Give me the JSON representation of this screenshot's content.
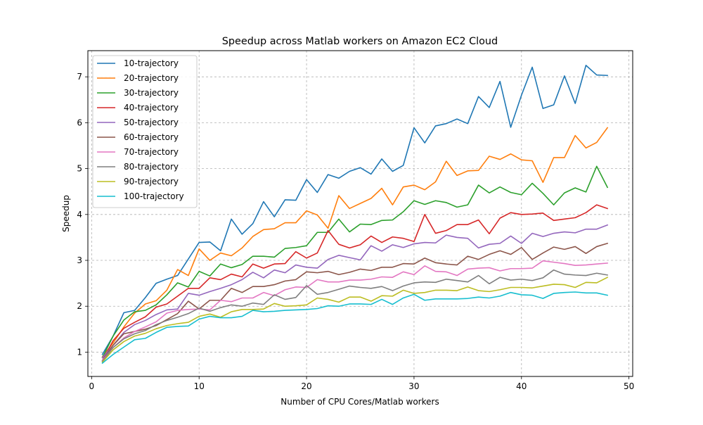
{
  "chart_data": {
    "type": "line",
    "title": "Speedup across Matlab workers on Amazon EC2 Cloud",
    "xlabel": "Number of CPU Cores/Matlab workers",
    "ylabel": "Speedup",
    "xlim": [
      -0.35,
      50.35
    ],
    "ylim": [
      0.47,
      7.57
    ],
    "xticks": [
      0,
      10,
      20,
      30,
      40,
      50
    ],
    "yticks": [
      1,
      2,
      3,
      4,
      5,
      6,
      7
    ],
    "grid": true,
    "legend_position": "top-left",
    "x": [
      1,
      2,
      3,
      4,
      5,
      6,
      7,
      8,
      9,
      10,
      11,
      12,
      13,
      14,
      15,
      16,
      17,
      18,
      19,
      20,
      21,
      22,
      23,
      24,
      25,
      26,
      27,
      28,
      29,
      30,
      31,
      32,
      33,
      34,
      35,
      36,
      37,
      38,
      39,
      40,
      41,
      42,
      43,
      44,
      45,
      46,
      47,
      48
    ],
    "series": [
      {
        "name": "10-trajectory",
        "color": "#1f77b4",
        "values": [
          0.95,
          1.35,
          1.86,
          1.91,
          2.19,
          2.5,
          2.59,
          2.67,
          3.03,
          3.39,
          3.4,
          3.21,
          3.9,
          3.57,
          3.8,
          4.28,
          3.95,
          4.32,
          4.31,
          4.76,
          4.48,
          4.87,
          4.79,
          4.94,
          5.02,
          4.88,
          5.21,
          4.94,
          5.07,
          5.89,
          5.56,
          5.93,
          5.98,
          6.08,
          5.98,
          6.57,
          6.33,
          6.9,
          5.9,
          6.6,
          7.21,
          6.31,
          6.39,
          7.02,
          6.42,
          7.25,
          7.04,
          7.03
        ]
      },
      {
        "name": "20-trajectory",
        "color": "#ff7f0e",
        "values": [
          0.9,
          1.2,
          1.55,
          1.85,
          2.05,
          2.12,
          2.35,
          2.8,
          2.67,
          3.25,
          3.0,
          3.16,
          3.1,
          3.27,
          3.52,
          3.67,
          3.69,
          3.82,
          3.82,
          4.08,
          3.99,
          3.7,
          4.41,
          4.13,
          4.24,
          4.35,
          4.57,
          4.21,
          4.6,
          4.64,
          4.54,
          4.71,
          5.16,
          4.85,
          4.95,
          4.96,
          5.27,
          5.2,
          5.32,
          5.19,
          5.17,
          4.7,
          5.24,
          5.24,
          5.72,
          5.45,
          5.57,
          5.89
        ]
      },
      {
        "name": "30-trajectory",
        "color": "#2ca02c",
        "values": [
          0.88,
          1.35,
          1.7,
          1.88,
          1.91,
          2.03,
          2.25,
          2.51,
          2.42,
          2.76,
          2.66,
          2.92,
          2.84,
          2.91,
          3.09,
          3.09,
          3.07,
          3.26,
          3.28,
          3.32,
          3.61,
          3.61,
          3.9,
          3.62,
          3.79,
          3.78,
          3.87,
          3.88,
          4.06,
          4.3,
          4.22,
          4.3,
          4.26,
          4.16,
          4.21,
          4.64,
          4.47,
          4.6,
          4.48,
          4.43,
          4.68,
          4.46,
          4.21,
          4.47,
          4.58,
          4.49,
          5.05,
          4.59
        ]
      },
      {
        "name": "40-trajectory",
        "color": "#d62728",
        "values": [
          0.82,
          1.25,
          1.52,
          1.65,
          1.77,
          1.98,
          2.05,
          2.22,
          2.39,
          2.39,
          2.62,
          2.58,
          2.7,
          2.64,
          2.92,
          2.83,
          2.92,
          2.93,
          3.19,
          3.05,
          3.16,
          3.65,
          3.35,
          3.27,
          3.34,
          3.53,
          3.39,
          3.51,
          3.48,
          3.41,
          4.0,
          3.59,
          3.65,
          3.78,
          3.78,
          3.88,
          3.58,
          3.92,
          4.04,
          4.0,
          4.01,
          4.03,
          3.87,
          3.9,
          3.93,
          4.04,
          4.21,
          4.13
        ]
      },
      {
        "name": "50-trajectory",
        "color": "#9467bd",
        "values": [
          0.88,
          1.15,
          1.43,
          1.6,
          1.69,
          1.82,
          1.92,
          1.94,
          2.28,
          2.24,
          2.32,
          2.39,
          2.47,
          2.58,
          2.74,
          2.62,
          2.79,
          2.73,
          2.9,
          2.85,
          2.83,
          3.02,
          3.11,
          3.06,
          3.01,
          3.32,
          3.2,
          3.34,
          3.28,
          3.36,
          3.39,
          3.38,
          3.55,
          3.5,
          3.48,
          3.27,
          3.35,
          3.37,
          3.53,
          3.37,
          3.59,
          3.52,
          3.59,
          3.62,
          3.6,
          3.68,
          3.68,
          3.77
        ]
      },
      {
        "name": "60-trajectory",
        "color": "#8c564b",
        "values": [
          0.82,
          1.15,
          1.4,
          1.45,
          1.5,
          1.58,
          1.71,
          1.84,
          2.11,
          1.94,
          2.13,
          2.13,
          2.39,
          2.3,
          2.43,
          2.43,
          2.47,
          2.55,
          2.58,
          2.75,
          2.73,
          2.76,
          2.69,
          2.74,
          2.81,
          2.78,
          2.85,
          2.85,
          2.93,
          2.92,
          3.05,
          2.95,
          2.92,
          2.9,
          3.09,
          3.02,
          3.13,
          3.21,
          3.13,
          3.28,
          3.02,
          3.16,
          3.29,
          3.24,
          3.3,
          3.15,
          3.3,
          3.37
        ]
      },
      {
        "name": "70-trajectory",
        "color": "#e377c2",
        "values": [
          0.82,
          1.1,
          1.31,
          1.45,
          1.55,
          1.66,
          1.85,
          1.91,
          1.93,
          1.94,
          1.92,
          2.13,
          2.1,
          2.18,
          2.18,
          2.3,
          2.23,
          2.36,
          2.42,
          2.41,
          2.58,
          2.53,
          2.53,
          2.57,
          2.57,
          2.59,
          2.64,
          2.63,
          2.75,
          2.69,
          2.88,
          2.76,
          2.75,
          2.67,
          2.81,
          2.83,
          2.84,
          2.77,
          2.82,
          2.82,
          2.83,
          2.99,
          2.96,
          2.93,
          2.89,
          2.9,
          2.92,
          2.94
        ]
      },
      {
        "name": "80-trajectory",
        "color": "#7f7f7f",
        "values": [
          0.8,
          1.1,
          1.29,
          1.4,
          1.47,
          1.6,
          1.69,
          1.76,
          1.84,
          1.96,
          1.89,
          1.97,
          2.03,
          2.0,
          2.07,
          2.04,
          2.25,
          2.15,
          2.19,
          2.45,
          2.26,
          2.3,
          2.37,
          2.44,
          2.41,
          2.39,
          2.43,
          2.34,
          2.44,
          2.51,
          2.53,
          2.52,
          2.59,
          2.56,
          2.53,
          2.67,
          2.49,
          2.63,
          2.57,
          2.59,
          2.56,
          2.62,
          2.79,
          2.7,
          2.68,
          2.67,
          2.72,
          2.68
        ]
      },
      {
        "name": "90-trajectory",
        "color": "#bcbd22",
        "values": [
          0.78,
          1.05,
          1.23,
          1.35,
          1.41,
          1.51,
          1.58,
          1.62,
          1.65,
          1.78,
          1.83,
          1.76,
          1.88,
          1.93,
          1.93,
          1.94,
          2.06,
          2.0,
          2.01,
          2.03,
          2.18,
          2.15,
          2.09,
          2.2,
          2.2,
          2.11,
          2.23,
          2.22,
          2.35,
          2.28,
          2.3,
          2.35,
          2.35,
          2.34,
          2.42,
          2.34,
          2.32,
          2.36,
          2.41,
          2.41,
          2.4,
          2.44,
          2.48,
          2.47,
          2.41,
          2.52,
          2.51,
          2.63
        ]
      },
      {
        "name": "100-trajectory",
        "color": "#17becf",
        "values": [
          0.76,
          0.95,
          1.11,
          1.27,
          1.3,
          1.43,
          1.54,
          1.56,
          1.57,
          1.72,
          1.78,
          1.75,
          1.75,
          1.78,
          1.91,
          1.88,
          1.89,
          1.91,
          1.92,
          1.93,
          1.95,
          2.01,
          2.0,
          2.05,
          2.05,
          2.04,
          2.15,
          2.04,
          2.18,
          2.26,
          2.13,
          2.16,
          2.16,
          2.16,
          2.17,
          2.2,
          2.18,
          2.22,
          2.3,
          2.25,
          2.24,
          2.17,
          2.28,
          2.3,
          2.31,
          2.29,
          2.29,
          2.24
        ]
      }
    ]
  }
}
